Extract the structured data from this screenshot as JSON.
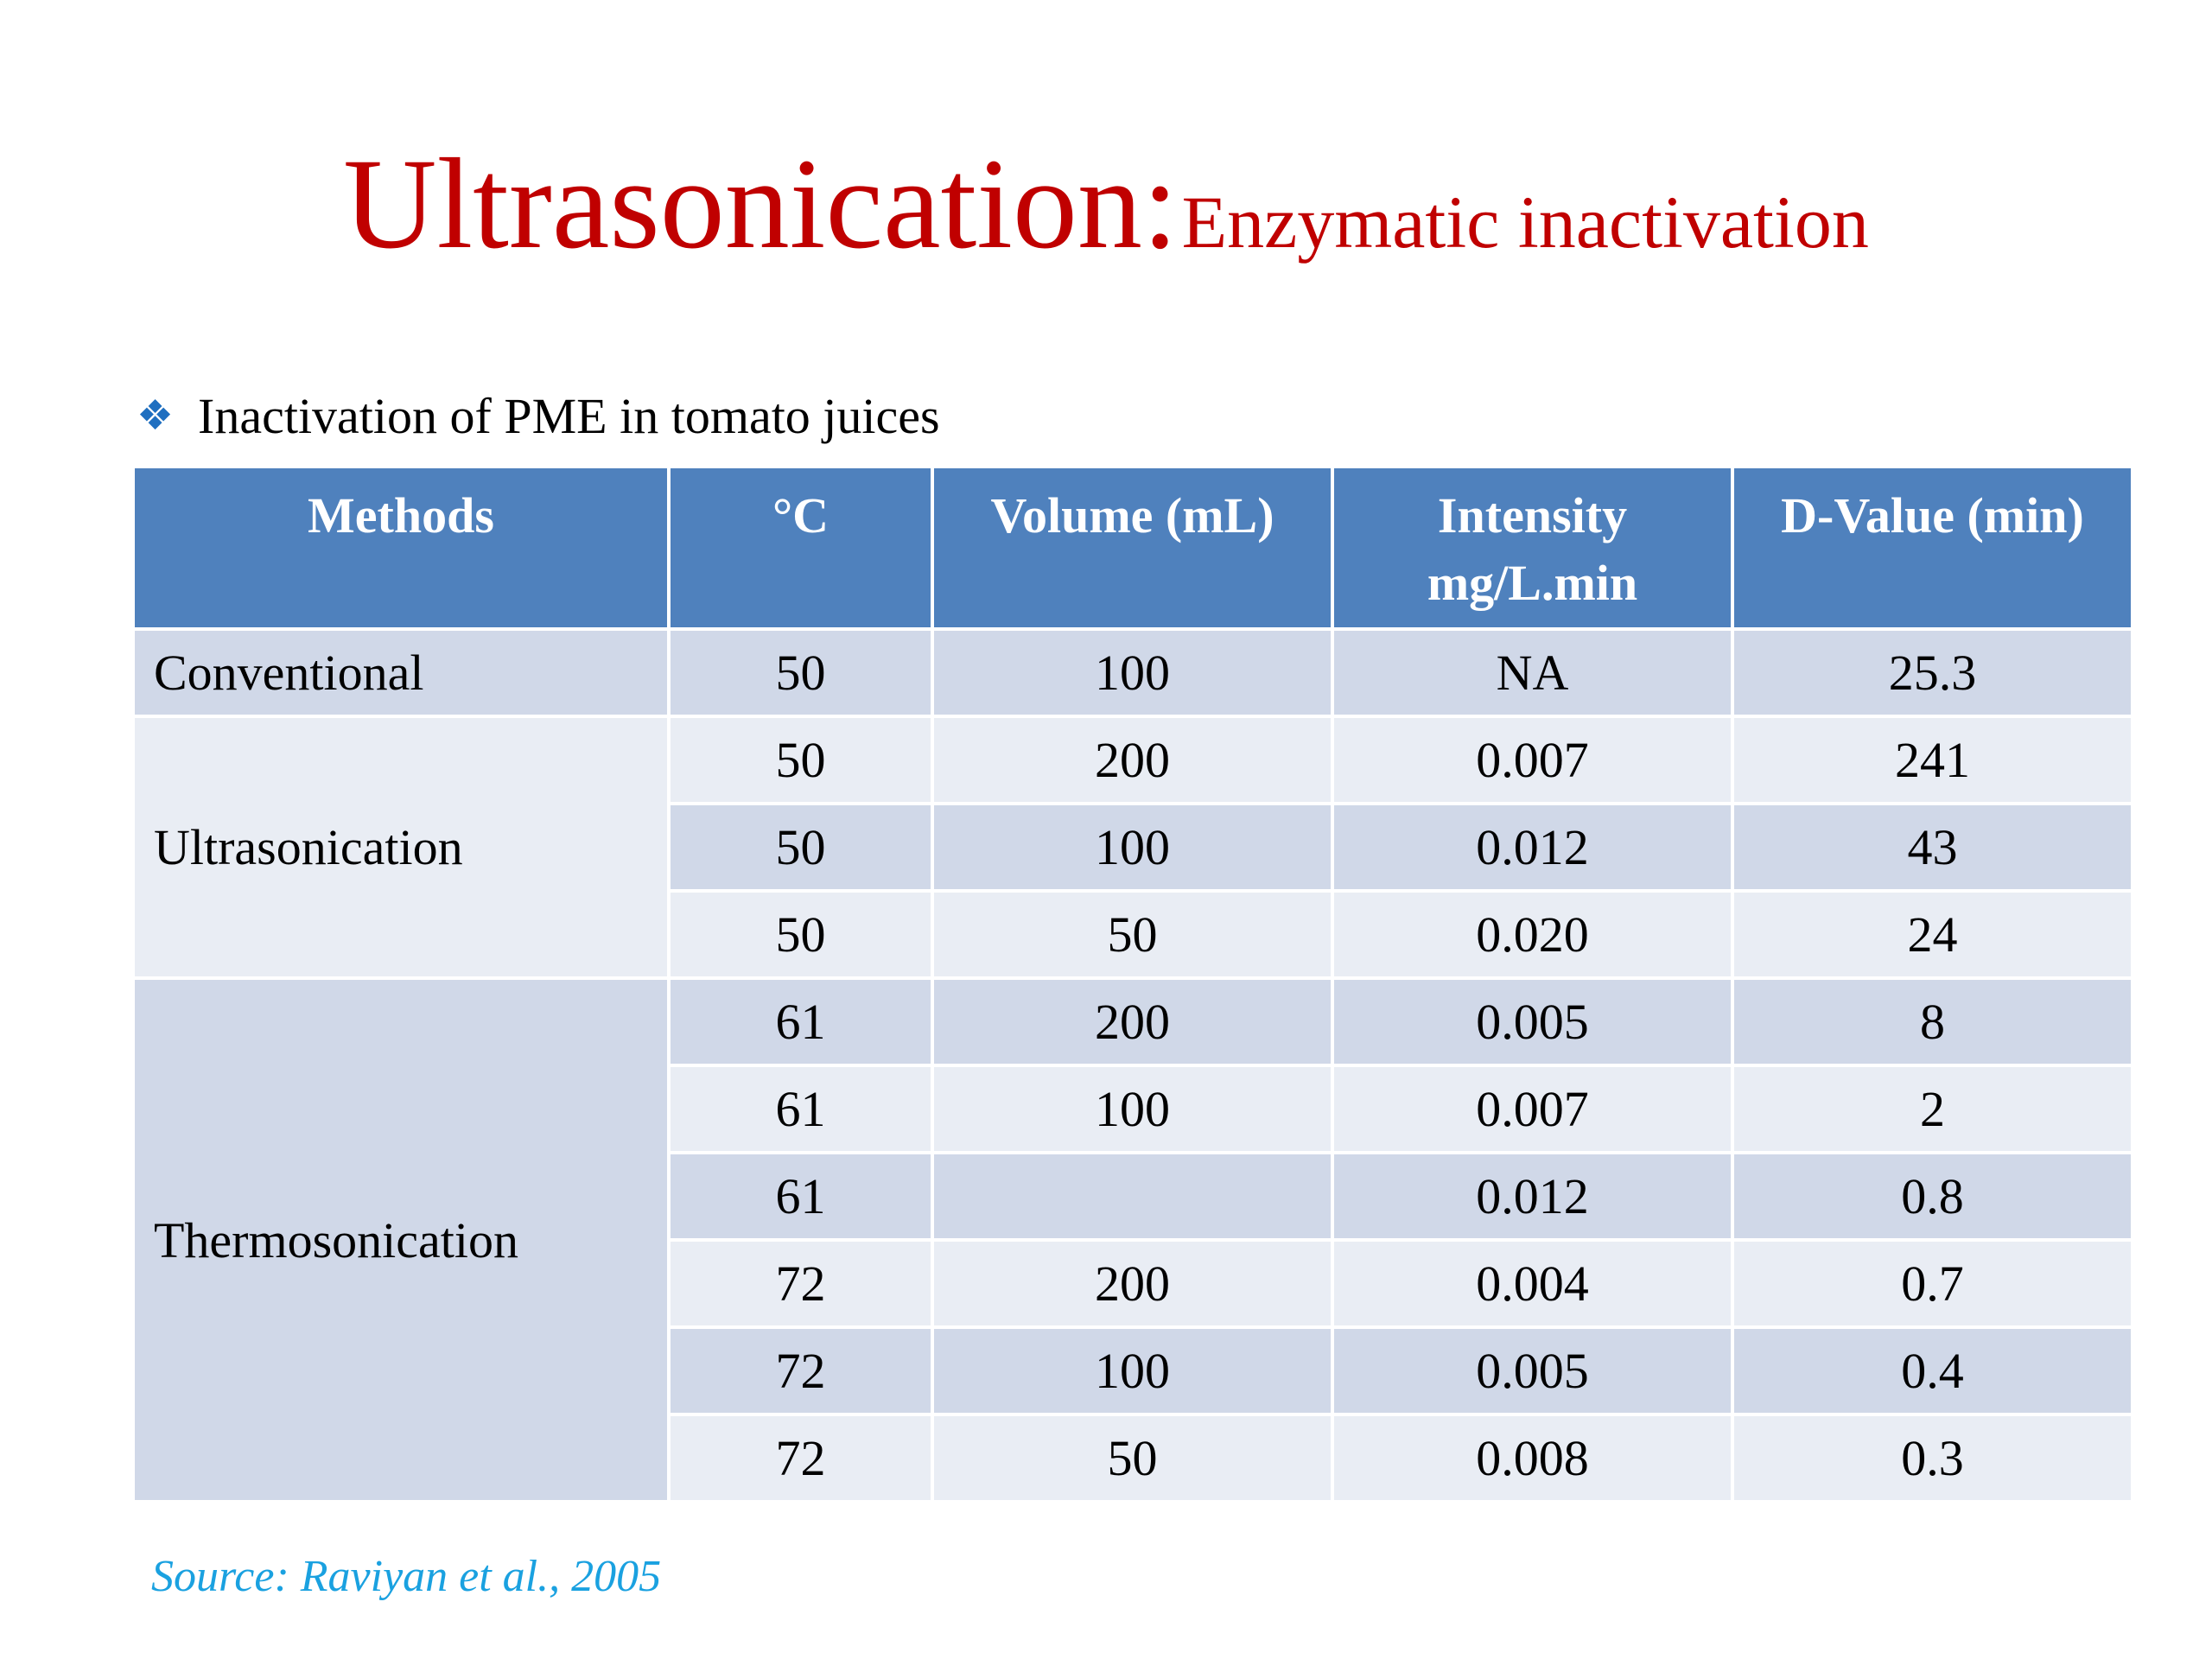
{
  "title": {
    "main": "Ultrasonication:",
    "sub": "Enzymatic inactivation"
  },
  "bullet": {
    "icon": "diamond-bullet-icon",
    "text": "Inactivation of PME in tomato juices"
  },
  "table": {
    "headers": [
      "Methods",
      "°C",
      "Volume (mL)",
      "Intensity mg/L.min",
      "D-Value (min)"
    ],
    "rows": [
      {
        "method": "Conventional",
        "temp": "50",
        "volume": "100",
        "intensity": "NA",
        "dvalue": "25.3"
      },
      {
        "method": "Ultrasonication",
        "temp": "50",
        "volume": "200",
        "intensity": "0.007",
        "dvalue": "241"
      },
      {
        "method": "",
        "temp": "50",
        "volume": "100",
        "intensity": "0.012",
        "dvalue": "43"
      },
      {
        "method": "",
        "temp": "50",
        "volume": "50",
        "intensity": "0.020",
        "dvalue": "24"
      },
      {
        "method": "Thermosonication",
        "temp": "61",
        "volume": "200",
        "intensity": "0.005",
        "dvalue": "8"
      },
      {
        "method": "",
        "temp": "61",
        "volume": "100",
        "intensity": "0.007",
        "dvalue": "2"
      },
      {
        "method": "",
        "temp": "61",
        "volume": "",
        "intensity": "0.012",
        "dvalue": "0.8"
      },
      {
        "method": "",
        "temp": "72",
        "volume": "200",
        "intensity": "0.004",
        "dvalue": "0.7"
      },
      {
        "method": "",
        "temp": "72",
        "volume": "100",
        "intensity": "0.005",
        "dvalue": "0.4"
      },
      {
        "method": "",
        "temp": "72",
        "volume": "50",
        "intensity": "0.008",
        "dvalue": "0.3"
      }
    ]
  },
  "source": "Source: Raviyan et al., 2005",
  "colors": {
    "title": "#c00000",
    "header_bg": "#4f81bd",
    "row_dark": "#d0d8e8",
    "row_light": "#e9edf4",
    "source": "#1aa1e0",
    "bullet": "#1f6fc0"
  }
}
